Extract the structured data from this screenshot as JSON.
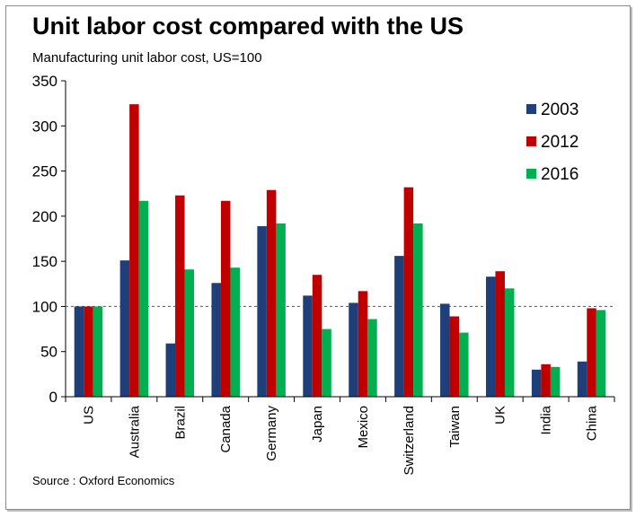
{
  "chart_data": {
    "type": "bar",
    "title": "Unit labor cost compared with the US",
    "subtitle": "Manufacturing unit labor cost, US=100",
    "source": "Source : Oxford Economics",
    "xlabel": "",
    "ylabel": "",
    "ylim": [
      0,
      350
    ],
    "yticks": [
      0,
      50,
      100,
      150,
      200,
      250,
      300,
      350
    ],
    "reference_line": 100,
    "grid": false,
    "legend_position": "top-right",
    "categories": [
      "US",
      "Australia",
      "Brazil",
      "Canada",
      "Germany",
      "Japan",
      "Mexico",
      "Switzerland",
      "Taiwan",
      "UK",
      "India",
      "China"
    ],
    "series": [
      {
        "name": "2003",
        "color": "#1f3f7a",
        "values": [
          100,
          151,
          59,
          126,
          189,
          112,
          104,
          156,
          103,
          133,
          30,
          39
        ]
      },
      {
        "name": "2012",
        "color": "#c00000",
        "values": [
          100,
          324,
          223,
          217,
          229,
          135,
          117,
          232,
          89,
          139,
          36,
          98
        ]
      },
      {
        "name": "2016",
        "color": "#00b050",
        "values": [
          100,
          217,
          141,
          143,
          192,
          75,
          86,
          192,
          71,
          120,
          33,
          96
        ]
      }
    ]
  }
}
